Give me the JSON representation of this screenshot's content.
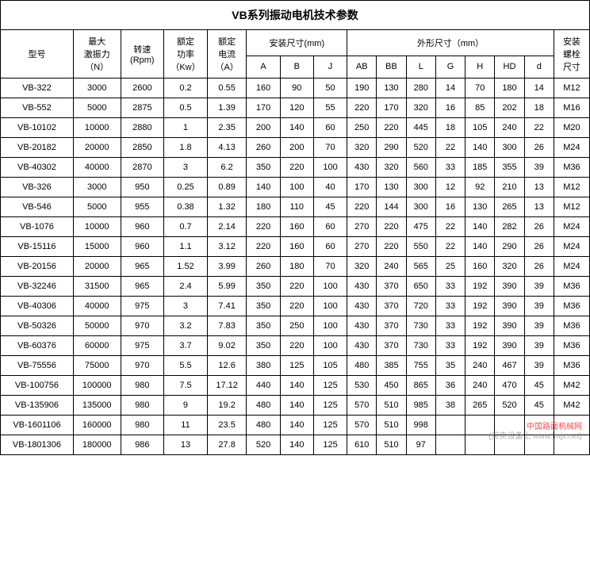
{
  "title": "VB系列振动电机技术参数",
  "headers": {
    "model": "型号",
    "force": "最大\n激振力\n（N）",
    "speed": "转速\n(Rpm)",
    "power": "额定\n功率\n（Kw）",
    "current": "额定\n电流\n（A）",
    "install_dim": "安装尺寸(mm)",
    "outer_dim": "外形尺寸（mm）",
    "bolt": "安装\n螺栓\n尺寸",
    "A": "A",
    "B": "B",
    "J": "J",
    "AB": "AB",
    "BB": "BB",
    "L": "L",
    "G": "G",
    "H": "H",
    "HD": "HD",
    "d": "d"
  },
  "columns": [
    "model",
    "force",
    "speed",
    "power",
    "current",
    "A",
    "B",
    "J",
    "AB",
    "BB",
    "L",
    "G",
    "H",
    "HD",
    "d",
    "bolt"
  ],
  "rows": [
    {
      "model": "VB-322",
      "force": "3000",
      "speed": "2600",
      "power": "0.2",
      "current": "0.55",
      "A": "160",
      "B": "90",
      "J": "50",
      "AB": "190",
      "BB": "130",
      "L": "280",
      "G": "14",
      "H": "70",
      "HD": "180",
      "d": "14",
      "bolt": "M12"
    },
    {
      "model": "VB-552",
      "force": "5000",
      "speed": "2875",
      "power": "0.5",
      "current": "1.39",
      "A": "170",
      "B": "120",
      "J": "55",
      "AB": "220",
      "BB": "170",
      "L": "320",
      "G": "16",
      "H": "85",
      "HD": "202",
      "d": "18",
      "bolt": "M16"
    },
    {
      "model": "VB-10102",
      "force": "10000",
      "speed": "2880",
      "power": "1",
      "current": "2.35",
      "A": "200",
      "B": "140",
      "J": "60",
      "AB": "250",
      "BB": "220",
      "L": "445",
      "G": "18",
      "H": "105",
      "HD": "240",
      "d": "22",
      "bolt": "M20"
    },
    {
      "model": "VB-20182",
      "force": "20000",
      "speed": "2850",
      "power": "1.8",
      "current": "4.13",
      "A": "260",
      "B": "200",
      "J": "70",
      "AB": "320",
      "BB": "290",
      "L": "520",
      "G": "22",
      "H": "140",
      "HD": "300",
      "d": "26",
      "bolt": "M24"
    },
    {
      "model": "VB-40302",
      "force": "40000",
      "speed": "2870",
      "power": "3",
      "current": "6.2",
      "A": "350",
      "B": "220",
      "J": "100",
      "AB": "430",
      "BB": "320",
      "L": "560",
      "G": "33",
      "H": "185",
      "HD": "355",
      "d": "39",
      "bolt": "M36"
    },
    {
      "model": "VB-326",
      "force": "3000",
      "speed": "950",
      "power": "0.25",
      "current": "0.89",
      "A": "140",
      "B": "100",
      "J": "40",
      "AB": "170",
      "BB": "130",
      "L": "300",
      "G": "12",
      "H": "92",
      "HD": "210",
      "d": "13",
      "bolt": "M12"
    },
    {
      "model": "VB-546",
      "force": "5000",
      "speed": "955",
      "power": "0.38",
      "current": "1.32",
      "A": "180",
      "B": "110",
      "J": "45",
      "AB": "220",
      "BB": "144",
      "L": "300",
      "G": "16",
      "H": "130",
      "HD": "265",
      "d": "13",
      "bolt": "M12"
    },
    {
      "model": "VB-1076",
      "force": "10000",
      "speed": "960",
      "power": "0.7",
      "current": "2.14",
      "A": "220",
      "B": "160",
      "J": "60",
      "AB": "270",
      "BB": "220",
      "L": "475",
      "G": "22",
      "H": "140",
      "HD": "282",
      "d": "26",
      "bolt": "M24"
    },
    {
      "model": "VB-15116",
      "force": "15000",
      "speed": "960",
      "power": "1.1",
      "current": "3.12",
      "A": "220",
      "B": "160",
      "J": "60",
      "AB": "270",
      "BB": "220",
      "L": "550",
      "G": "22",
      "H": "140",
      "HD": "290",
      "d": "26",
      "bolt": "M24"
    },
    {
      "model": "VB-20156",
      "force": "20000",
      "speed": "965",
      "power": "1.52",
      "current": "3.99",
      "A": "260",
      "B": "180",
      "J": "70",
      "AB": "320",
      "BB": "240",
      "L": "565",
      "G": "25",
      "H": "160",
      "HD": "320",
      "d": "26",
      "bolt": "M24"
    },
    {
      "model": "VB-32246",
      "force": "31500",
      "speed": "965",
      "power": "2.4",
      "current": "5.99",
      "A": "350",
      "B": "220",
      "J": "100",
      "AB": "430",
      "BB": "370",
      "L": "650",
      "G": "33",
      "H": "192",
      "HD": "390",
      "d": "39",
      "bolt": "M36"
    },
    {
      "model": "VB-40306",
      "force": "40000",
      "speed": "975",
      "power": "3",
      "current": "7.41",
      "A": "350",
      "B": "220",
      "J": "100",
      "AB": "430",
      "BB": "370",
      "L": "720",
      "G": "33",
      "H": "192",
      "HD": "390",
      "d": "39",
      "bolt": "M36"
    },
    {
      "model": "VB-50326",
      "force": "50000",
      "speed": "970",
      "power": "3.2",
      "current": "7.83",
      "A": "350",
      "B": "250",
      "J": "100",
      "AB": "430",
      "BB": "370",
      "L": "730",
      "G": "33",
      "H": "192",
      "HD": "390",
      "d": "39",
      "bolt": "M36"
    },
    {
      "model": "VB-60376",
      "force": "60000",
      "speed": "975",
      "power": "3.7",
      "current": "9.02",
      "A": "350",
      "B": "220",
      "J": "100",
      "AB": "430",
      "BB": "370",
      "L": "730",
      "G": "33",
      "H": "192",
      "HD": "390",
      "d": "39",
      "bolt": "M36"
    },
    {
      "model": "VB-75556",
      "force": "75000",
      "speed": "970",
      "power": "5.5",
      "current": "12.6",
      "A": "380",
      "B": "125",
      "J": "105",
      "AB": "480",
      "BB": "385",
      "L": "755",
      "G": "35",
      "H": "240",
      "HD": "467",
      "d": "39",
      "bolt": "M36"
    },
    {
      "model": "VB-100756",
      "force": "100000",
      "speed": "980",
      "power": "7.5",
      "current": "17.12",
      "A": "440",
      "B": "140",
      "J": "125",
      "AB": "530",
      "BB": "450",
      "L": "865",
      "G": "36",
      "H": "240",
      "HD": "470",
      "d": "45",
      "bolt": "M42"
    },
    {
      "model": "VB-135906",
      "force": "135000",
      "speed": "980",
      "power": "9",
      "current": "19.2",
      "A": "480",
      "B": "140",
      "J": "125",
      "AB": "570",
      "BB": "510",
      "L": "985",
      "G": "38",
      "H": "265",
      "HD": "520",
      "d": "45",
      "bolt": "M42"
    },
    {
      "model": "VB-1601106",
      "force": "160000",
      "speed": "980",
      "power": "11",
      "current": "23.5",
      "A": "480",
      "B": "140",
      "J": "125",
      "AB": "570",
      "BB": "510",
      "L": "998",
      "G": "",
      "H": "",
      "HD": "",
      "d": "",
      "bolt": ""
    },
    {
      "model": "VB-1801306",
      "force": "180000",
      "speed": "986",
      "power": "13",
      "current": "27.8",
      "A": "520",
      "B": "140",
      "J": "125",
      "AB": "610",
      "BB": "510",
      "L": "97",
      "G": "",
      "H": "",
      "HD": "",
      "d": "",
      "bolt": ""
    }
  ],
  "watermark1": "中国路面机械网",
  "watermark2": "(买卖设备上 www.lmjx.net)",
  "colors": {
    "border": "#000000",
    "background": "#ffffff",
    "text": "#000000",
    "watermark": "#ff0000"
  }
}
